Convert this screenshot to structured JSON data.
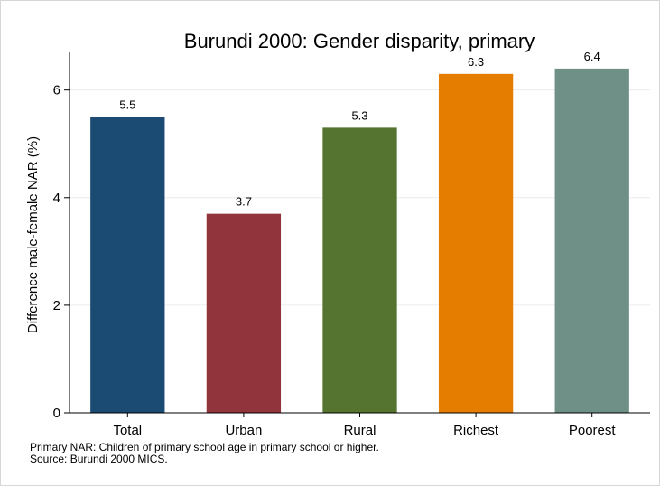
{
  "chart_data": {
    "type": "bar",
    "title": "Burundi 2000: Gender disparity, primary",
    "xlabel": "",
    "ylabel": "Difference male-female NAR (%)",
    "categories": [
      "Total",
      "Urban",
      "Rural",
      "Richest",
      "Poorest"
    ],
    "values": [
      5.5,
      3.7,
      5.3,
      6.3,
      6.4
    ],
    "data_labels": [
      "5.5",
      "3.7",
      "5.3",
      "6.3",
      "6.4"
    ],
    "colors": [
      "#1b4a72",
      "#91343b",
      "#55742f",
      "#e47d00",
      "#6e9086"
    ],
    "ylim": [
      0,
      6.7
    ],
    "yticks": [
      0,
      2,
      4,
      6
    ],
    "grid": true,
    "legend": "none"
  },
  "notes": [
    "Primary NAR: Children of primary school age in primary school or higher.",
    "Source: Burundi 2000 MICS."
  ]
}
